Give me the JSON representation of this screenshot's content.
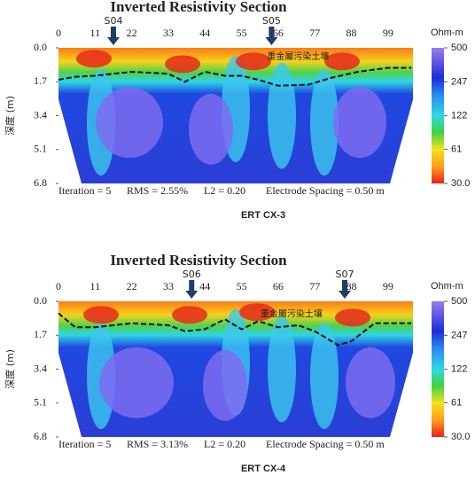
{
  "chart_data": [
    {
      "type": "heatmap",
      "title": "Inverted Resistivity Section",
      "ylabel": "深度 (m)",
      "xlim": [
        0,
        106.5
      ],
      "xticks": [
        0,
        11,
        22,
        33,
        44,
        55,
        66,
        77,
        88,
        99
      ],
      "ylim": [
        0,
        6.8
      ],
      "yticks": [
        {
          "value": 0,
          "label": "0.0"
        },
        1.7,
        3.4,
        5.1,
        {
          "value": 6.8,
          "label": "6.8"
        }
      ],
      "colorbar": {
        "label": "Ohm-m",
        "scale": "log",
        "lim": [
          30,
          500
        ],
        "ticks": [
          {
            "value": 30,
            "label": "30.0"
          },
          61,
          122,
          247,
          500
        ]
      },
      "markers": [
        {
          "label": "S04",
          "x": 16.5
        },
        {
          "label": "S05",
          "x": 64
        }
      ],
      "annotation": "重金屬污染土壤",
      "boundary": {
        "x": [
          0,
          5,
          11,
          22,
          33,
          38,
          44,
          50,
          55,
          60,
          66,
          75,
          82,
          90,
          99,
          106
        ],
        "values": [
          1.6,
          1.45,
          1.4,
          1.2,
          1.3,
          1.7,
          1.2,
          1.4,
          1.4,
          1.6,
          1.9,
          1.85,
          1.5,
          1.2,
          1.0,
          1.0
        ]
      },
      "stats": [
        "Iteration = 5",
        "RMS = 2.55%",
        "L2 = 0.20",
        "Electrode Spacing = 0.50 m"
      ],
      "caption": "ERT CX-3"
    },
    {
      "type": "heatmap",
      "title": "Inverted Resistivity Section",
      "ylabel": "深度 (m)",
      "xlim": [
        0,
        106.5
      ],
      "xticks": [
        0,
        11,
        22,
        33,
        44,
        55,
        66,
        77,
        88,
        99
      ],
      "ylim": [
        0,
        6.8
      ],
      "yticks": [
        {
          "value": 0,
          "label": "0.0"
        },
        1.7,
        3.4,
        5.1,
        {
          "value": 6.8,
          "label": "6.8"
        }
      ],
      "colorbar": {
        "label": "Ohm-m",
        "scale": "log",
        "lim": [
          30,
          500
        ],
        "ticks": [
          {
            "value": 30,
            "label": "30.0"
          },
          61,
          122,
          247,
          500
        ]
      },
      "markers": [
        {
          "label": "S06",
          "x": 40
        },
        {
          "label": "S07",
          "x": 86
        }
      ],
      "annotation": "重金屬污染土壤",
      "boundary": {
        "x": [
          0,
          5,
          11,
          22,
          33,
          38,
          44,
          50,
          55,
          60,
          66,
          72,
          77,
          84,
          88,
          95,
          106
        ],
        "values": [
          0.6,
          1.3,
          1.3,
          1.1,
          1.2,
          1.5,
          1.4,
          0.9,
          1.4,
          1.0,
          1.3,
          1.2,
          1.5,
          2.2,
          2.0,
          1.1,
          1.1
        ]
      },
      "stats": [
        "Iteration = 5",
        "RMS = 3.13%",
        "L2 = 0.20",
        "Electrode Spacing = 0.50 m"
      ],
      "caption": "ERT CX-4"
    }
  ]
}
